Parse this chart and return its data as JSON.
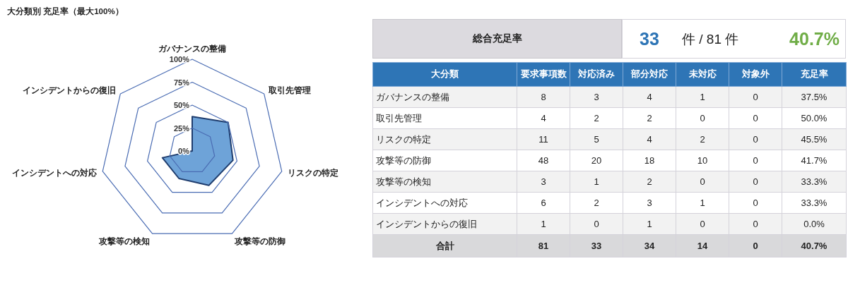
{
  "chart_data": [
    {
      "type": "radar",
      "title": "大分類別 充足率（最大100%）",
      "categories": [
        "ガバナンスの整備",
        "取引先管理",
        "リスクの特定",
        "攻撃等の防御",
        "攻撃等の検知",
        "インシデントへの対応",
        "インシデントからの復旧"
      ],
      "series": [
        {
          "color": "#6ea3d8",
          "values": [
            37.5,
            50.0,
            45.5,
            41.7,
            33.3,
            33.3,
            0.0
          ]
        }
      ],
      "ylim": [
        0,
        100
      ],
      "yticks": [
        {
          "value": 0,
          "label": "0%"
        },
        {
          "value": 25,
          "label": "25%"
        },
        {
          "value": 50,
          "label": "50%"
        },
        {
          "value": 75,
          "label": "75%"
        },
        {
          "value": 100,
          "label": "100%"
        }
      ],
      "grid": true
    },
    {
      "type": "other",
      "title": "総合充足率",
      "annotations": [
        "33",
        "件 / 81 件",
        "40.7%"
      ]
    },
    {
      "type": "other",
      "ylabel": "大分類",
      "categories": [
        "ガバナンスの整備",
        "取引先管理",
        "リスクの特定",
        "攻撃等の防御",
        "攻撃等の検知",
        "インシデントへの対応",
        "インシデントからの復旧",
        "合計"
      ],
      "series": [
        {
          "name": "要求事項数",
          "colors": [
            "#f2f2f2",
            "#ffffff",
            "#f2f2f2",
            "#ffffff",
            "#f2f2f2",
            "#ffffff",
            "#f2f2f2",
            "#d9d9db"
          ],
          "values": [
            8,
            4,
            11,
            48,
            3,
            6,
            1,
            81
          ]
        },
        {
          "name": "対応済み",
          "colors": [
            "#f2f2f2",
            "#ffffff",
            "#f2f2f2",
            "#ffffff",
            "#f2f2f2",
            "#ffffff",
            "#f2f2f2",
            "#d9d9db"
          ],
          "values": [
            3,
            2,
            5,
            20,
            1,
            2,
            0,
            33
          ]
        },
        {
          "name": "部分対応",
          "colors": [
            "#f2f2f2",
            "#ffffff",
            "#f2f2f2",
            "#ffffff",
            "#f2f2f2",
            "#ffffff",
            "#f2f2f2",
            "#d9d9db"
          ],
          "values": [
            4,
            2,
            4,
            18,
            2,
            3,
            1,
            34
          ]
        },
        {
          "name": "未対応",
          "colors": [
            "#f2f2f2",
            "#ffffff",
            "#f2f2f2",
            "#ffffff",
            "#f2f2f2",
            "#ffffff",
            "#f2f2f2",
            "#d9d9db"
          ],
          "values": [
            1,
            0,
            2,
            10,
            0,
            1,
            0,
            14
          ]
        },
        {
          "name": "対象外",
          "colors": [
            "#f2f2f2",
            "#ffffff",
            "#f2f2f2",
            "#ffffff",
            "#f2f2f2",
            "#ffffff",
            "#f2f2f2",
            "#d9d9db"
          ],
          "values": [
            0,
            0,
            0,
            0,
            0,
            0,
            0,
            0
          ]
        },
        {
          "name": "充足率",
          "colors": [
            "#f2f2f2",
            "#ffffff",
            "#f2f2f2",
            "#ffffff",
            "#f2f2f2",
            "#ffffff",
            "#f2f2f2",
            "#d9d9db"
          ],
          "values": [
            37.5,
            50.0,
            45.5,
            41.7,
            33.3,
            33.3,
            0.0,
            40.7
          ],
          "value_labels": [
            "37.5%",
            "50.0%",
            "45.5%",
            "41.7%",
            "33.3%",
            "33.3%",
            "0.0%",
            "40.7%"
          ]
        }
      ],
      "data_labels": true
    }
  ]
}
